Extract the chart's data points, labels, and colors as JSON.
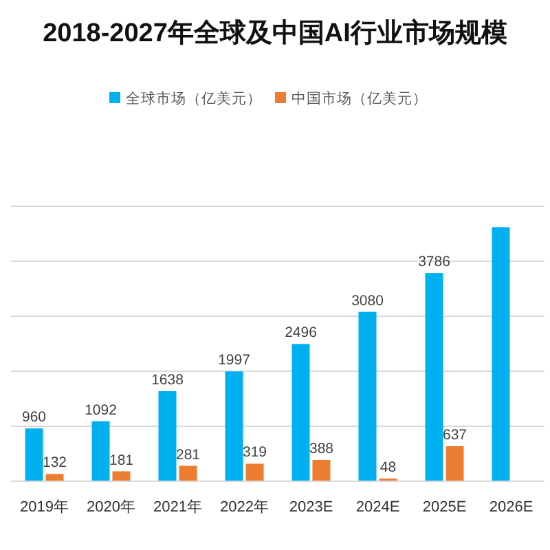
{
  "chart_data": {
    "type": "bar",
    "title": "2018-2027年全球及中国AI行业市场规模",
    "categories": [
      "2019年",
      "2020年",
      "2021年",
      "2022年",
      "2023E",
      "2024E",
      "2025E",
      "2026E"
    ],
    "series": [
      {
        "name": "全球市场（亿美元）",
        "color": "#00b0f0",
        "values": [
          960,
          1092,
          1638,
          1997,
          2496,
          3080,
          3786,
          4620
        ],
        "value_labels": [
          "960",
          "1092",
          "1638",
          "1997",
          "2496",
          "3080",
          "3786",
          null
        ]
      },
      {
        "name": "中国市场（亿美元）",
        "color": "#ed7d31",
        "values": [
          132,
          181,
          281,
          319,
          388,
          48,
          637,
          null
        ],
        "value_labels": [
          "132",
          "181",
          "281",
          "319",
          "388",
          "48",
          "637",
          null
        ]
      }
    ],
    "ylim": [
      0,
      5000
    ],
    "yticks": [
      {
        "value": 0,
        "label": null
      },
      {
        "value": 1000,
        "label": null
      },
      {
        "value": 2000,
        "label": null
      },
      {
        "value": 3000,
        "label": null
      },
      {
        "value": 4000,
        "label": null
      },
      {
        "value": 5000,
        "label": null
      }
    ],
    "tick_labels": "x",
    "grid": "y",
    "legend": "top"
  }
}
